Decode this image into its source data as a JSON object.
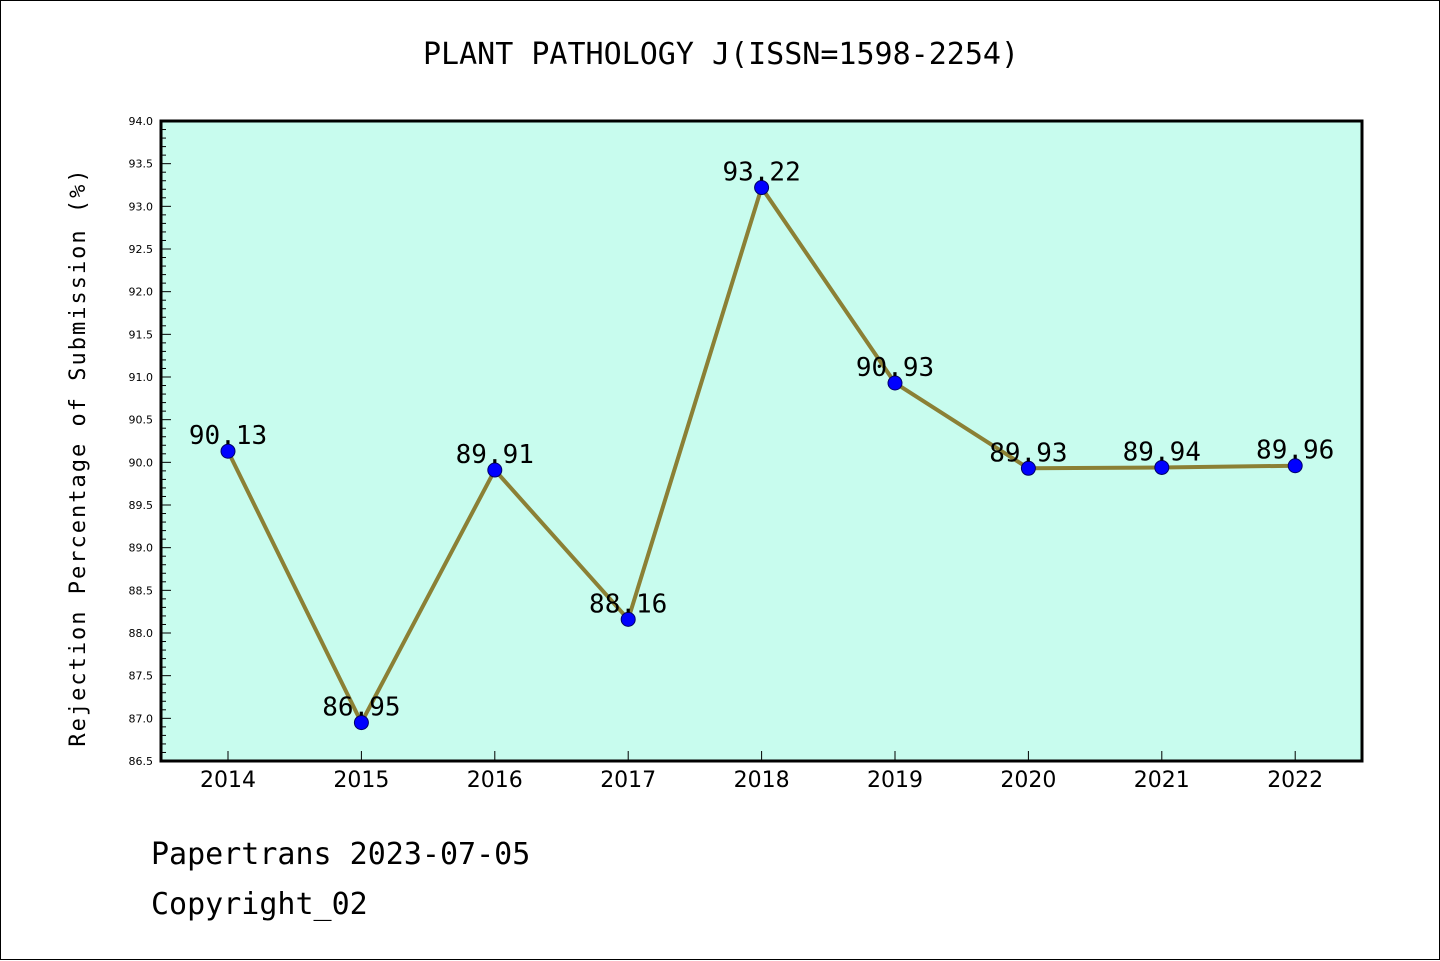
{
  "chart_data": {
    "type": "line",
    "title": "PLANT PATHOLOGY J(ISSN=1598-2254)",
    "xlabel": "",
    "ylabel": "Rejection Percentage of Submission (%)",
    "categories": [
      "2014",
      "2015",
      "2016",
      "2017",
      "2018",
      "2019",
      "2020",
      "2021",
      "2022"
    ],
    "series": [
      {
        "values": [
          90.13,
          86.95,
          89.91,
          88.16,
          93.22,
          90.93,
          89.93,
          89.94,
          89.96
        ],
        "data_labels": [
          "90.13",
          "86.95",
          "89.91",
          "88.16",
          "93.22",
          "90.93",
          "89.93",
          "89.94",
          "89.96"
        ]
      }
    ],
    "ylim": [
      86.5,
      94.0
    ],
    "yticks": [
      "86.5",
      "87.0",
      "87.5",
      "88.0",
      "88.5",
      "89.0",
      "89.5",
      "90.0",
      "90.5",
      "91.0",
      "91.5",
      "92.0",
      "92.5",
      "93.0",
      "93.5",
      "94.0"
    ],
    "grid": false,
    "colors": {
      "plot_background": "#c8fcee",
      "line": "#8b8035",
      "marker": "#0000ff"
    }
  },
  "footer": {
    "line1": "Papertrans 2023-07-05",
    "line2": "Copyright_02"
  }
}
